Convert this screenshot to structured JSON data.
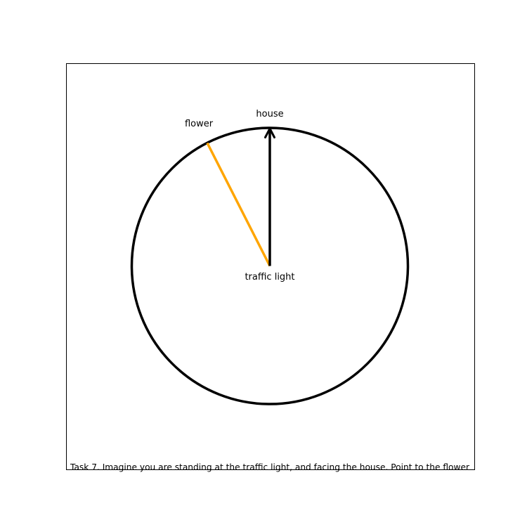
{
  "diagram": {
    "center_label": "traffic light",
    "facing": {
      "label": "house",
      "color": "#000000"
    },
    "target": {
      "label": "flower",
      "color": "#ffa500",
      "bearing_deg": -27
    },
    "circle_color": "#000000"
  },
  "caption": "Task 7. Imagine you are standing at the traffic light, and facing the house. Point to the flower"
}
